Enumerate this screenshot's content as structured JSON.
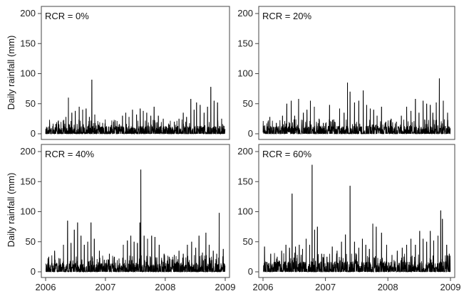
{
  "chart_data": {
    "type": "line",
    "ylabel": "Daily rainfall (mm)",
    "xlim": [
      "2006-01-01",
      "2009-01-01"
    ],
    "ylim": [
      0,
      200
    ],
    "x_ticks": [
      "2006",
      "2007",
      "2008",
      "2009"
    ],
    "y_ticks": [
      "0",
      "50",
      "100",
      "150",
      "200"
    ],
    "line_color": "#000000",
    "panels": [
      {
        "label": "RCR = 0%",
        "series": [
          {
            "x": [
              "2006-02-15",
              "2006-03-20",
              "2006-05-05",
              "2006-05-20",
              "2006-06-10",
              "2006-07-01",
              "2006-07-25",
              "2006-08-15",
              "2006-09-05",
              "2006-09-25",
              "2006-10-10",
              "2006-10-28",
              "2006-11-20",
              "2006-12-15",
              "2007-01-20",
              "2007-02-20",
              "2007-03-25",
              "2007-04-15",
              "2007-05-05",
              "2007-05-25",
              "2007-06-15",
              "2007-07-10",
              "2007-08-01",
              "2007-08-20",
              "2007-09-10",
              "2007-10-05",
              "2007-10-25",
              "2007-11-20",
              "2007-12-20",
              "2008-01-25",
              "2008-02-25",
              "2008-03-25",
              "2008-04-20",
              "2008-05-10",
              "2008-06-05",
              "2008-06-25",
              "2008-07-10",
              "2008-08-01",
              "2008-08-25",
              "2008-09-15",
              "2008-10-05",
              "2008-10-25",
              "2008-11-15",
              "2008-12-10"
            ],
            "y": [
              12,
              22,
              28,
              60,
              35,
              38,
              45,
              40,
              42,
              28,
              90,
              32,
              15,
              18,
              12,
              20,
              15,
              30,
              35,
              28,
              40,
              32,
              42,
              38,
              35,
              30,
              45,
              30,
              25,
              15,
              20,
              25,
              35,
              28,
              58,
              40,
              52,
              48,
              35,
              45,
              78,
              55,
              52,
              25
            ]
          }
        ]
      },
      {
        "label": "RCR = 20%",
        "series": [
          {
            "x": [
              "2006-02-10",
              "2006-03-20",
              "2006-04-25",
              "2006-05-20",
              "2006-06-15",
              "2006-07-05",
              "2006-07-28",
              "2006-08-25",
              "2006-09-15",
              "2006-10-05",
              "2006-10-28",
              "2006-11-25",
              "2006-12-20",
              "2007-01-25",
              "2007-02-25",
              "2007-03-25",
              "2007-04-20",
              "2007-05-10",
              "2007-05-25",
              "2007-06-20",
              "2007-07-15",
              "2007-08-10",
              "2007-08-30",
              "2007-09-20",
              "2007-10-10",
              "2007-10-30",
              "2007-11-25",
              "2007-12-20",
              "2008-01-20",
              "2008-02-20",
              "2008-03-20",
              "2008-04-20",
              "2008-05-15",
              "2008-06-10",
              "2008-07-01",
              "2008-07-25",
              "2008-08-15",
              "2008-09-05",
              "2008-09-20",
              "2008-10-10",
              "2008-10-28",
              "2008-11-20",
              "2008-12-15"
            ],
            "y": [
              28,
              18,
              30,
              50,
              55,
              30,
              58,
              35,
              40,
              55,
              45,
              25,
              18,
              48,
              20,
              42,
              35,
              85,
              70,
              52,
              55,
              72,
              48,
              42,
              40,
              30,
              45,
              20,
              25,
              20,
              30,
              45,
              38,
              58,
              35,
              55,
              50,
              48,
              35,
              52,
              92,
              55,
              35
            ]
          }
        ]
      },
      {
        "label": "RCR = 40%",
        "series": [
          {
            "x": [
              "2006-01-20",
              "2006-02-25",
              "2006-03-30",
              "2006-04-20",
              "2006-05-15",
              "2006-06-05",
              "2006-06-25",
              "2006-07-15",
              "2006-08-05",
              "2006-08-25",
              "2006-09-15",
              "2006-10-05",
              "2006-10-25",
              "2006-11-25",
              "2006-12-25",
              "2007-01-25",
              "2007-02-25",
              "2007-03-25",
              "2007-04-20",
              "2007-05-15",
              "2007-06-05",
              "2007-06-25",
              "2007-07-15",
              "2007-07-30",
              "2007-08-05",
              "2007-08-25",
              "2007-09-15",
              "2007-10-10",
              "2007-10-30",
              "2007-11-25",
              "2007-12-25",
              "2008-01-25",
              "2008-02-25",
              "2008-03-25",
              "2008-04-20",
              "2008-05-15",
              "2008-06-10",
              "2008-07-05",
              "2008-07-25",
              "2008-08-15",
              "2008-09-05",
              "2008-09-25",
              "2008-10-20",
              "2008-11-10",
              "2008-11-25",
              "2008-12-20"
            ],
            "y": [
              25,
              35,
              22,
              45,
              85,
              48,
              70,
              82,
              60,
              45,
              50,
              82,
              55,
              35,
              20,
              30,
              25,
              22,
              45,
              52,
              60,
              50,
              48,
              82,
              170,
              60,
              55,
              60,
              58,
              45,
              30,
              25,
              28,
              35,
              30,
              45,
              50,
              40,
              60,
              32,
              65,
              45,
              35,
              30,
              98,
              38
            ]
          }
        ]
      },
      {
        "label": "RCR = 60%",
        "series": [
          {
            "x": [
              "2006-01-10",
              "2006-02-15",
              "2006-03-25",
              "2006-04-20",
              "2006-05-15",
              "2006-06-05",
              "2006-06-20",
              "2006-07-10",
              "2006-08-01",
              "2006-08-20",
              "2006-09-10",
              "2006-10-01",
              "2006-10-15",
              "2006-10-30",
              "2006-11-15",
              "2006-12-10",
              "2007-01-10",
              "2007-02-10",
              "2007-03-10",
              "2007-04-05",
              "2007-04-28",
              "2007-05-25",
              "2007-06-20",
              "2007-07-15",
              "2007-08-05",
              "2007-08-25",
              "2007-09-15",
              "2007-10-05",
              "2007-10-25",
              "2007-11-25",
              "2007-12-25",
              "2008-01-25",
              "2008-02-25",
              "2008-03-25",
              "2008-04-20",
              "2008-05-15",
              "2008-06-10",
              "2008-07-05",
              "2008-07-25",
              "2008-08-15",
              "2008-09-05",
              "2008-09-25",
              "2008-10-20",
              "2008-11-05",
              "2008-11-15",
              "2008-12-10",
              "2008-12-25"
            ],
            "y": [
              42,
              30,
              25,
              35,
              45,
              40,
              130,
              42,
              45,
              38,
              55,
              45,
              178,
              70,
              75,
              30,
              25,
              42,
              35,
              50,
              62,
              143,
              50,
              40,
              55,
              45,
              38,
              80,
              75,
              65,
              45,
              28,
              35,
              40,
              45,
              55,
              45,
              68,
              55,
              50,
              68,
              52,
              60,
              102,
              88,
              45,
              30
            ]
          }
        ]
      }
    ]
  }
}
